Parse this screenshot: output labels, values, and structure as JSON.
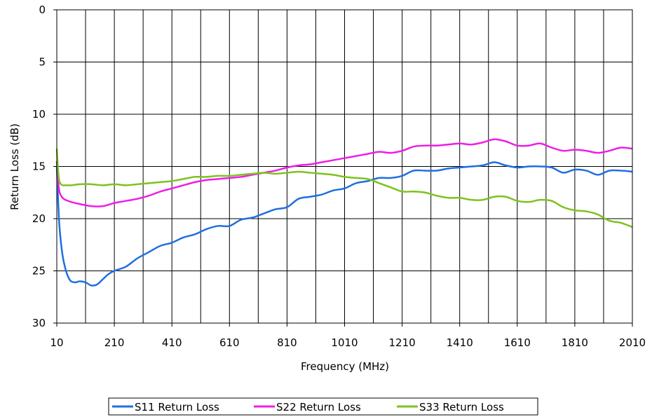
{
  "chart_data": {
    "type": "line",
    "title": "",
    "xlabel": "Frequency (MHz)",
    "ylabel": "Return Loss (dB)",
    "xlim": [
      10,
      2010
    ],
    "ylim": [
      0,
      30
    ],
    "y_inverted": true,
    "x_ticks": [
      "10",
      "210",
      "410",
      "610",
      "810",
      "1010",
      "1210",
      "1410",
      "1610",
      "1810",
      "2010"
    ],
    "y_ticks": [
      "0",
      "5",
      "10",
      "15",
      "20",
      "25",
      "30"
    ],
    "grid": {
      "vertical_step": 100,
      "horizontal_step": 5
    },
    "legend_position": "bottom",
    "series": [
      {
        "name": "S11 Return Loss",
        "color": "#1f6fe0",
        "x": [
          10,
          15,
          20,
          30,
          40,
          50,
          60,
          75,
          90,
          110,
          130,
          150,
          170,
          190,
          210,
          250,
          290,
          330,
          370,
          410,
          450,
          490,
          530,
          570,
          610,
          650,
          690,
          730,
          770,
          810,
          850,
          890,
          930,
          970,
          1010,
          1050,
          1090,
          1130,
          1170,
          1210,
          1250,
          1290,
          1330,
          1370,
          1410,
          1450,
          1490,
          1530,
          1570,
          1610,
          1650,
          1690,
          1730,
          1770,
          1810,
          1850,
          1890,
          1930,
          1970,
          2010
        ],
        "y": [
          15,
          18.5,
          21,
          23.5,
          24.8,
          25.6,
          26.0,
          26.1,
          26.0,
          26.1,
          26.4,
          26.3,
          25.8,
          25.3,
          25.0,
          24.6,
          23.8,
          23.2,
          22.6,
          22.3,
          21.8,
          21.5,
          21.0,
          20.7,
          20.7,
          20.1,
          19.9,
          19.5,
          19.1,
          18.9,
          18.1,
          17.9,
          17.7,
          17.3,
          17.1,
          16.6,
          16.4,
          16.1,
          16.1,
          15.9,
          15.4,
          15.4,
          15.4,
          15.2,
          15.1,
          15.0,
          14.9,
          14.6,
          14.9,
          15.1,
          15.0,
          15.0,
          15.1,
          15.6,
          15.3,
          15.4,
          15.8,
          15.4,
          15.4,
          15.5
        ]
      },
      {
        "name": "S22 Return Loss",
        "color": "#ee1ee6",
        "x": [
          10,
          15,
          20,
          30,
          40,
          60,
          90,
          130,
          170,
          210,
          250,
          290,
          330,
          370,
          410,
          450,
          490,
          530,
          570,
          610,
          650,
          690,
          730,
          770,
          810,
          850,
          890,
          930,
          970,
          1010,
          1050,
          1090,
          1130,
          1170,
          1210,
          1250,
          1290,
          1330,
          1370,
          1410,
          1450,
          1490,
          1530,
          1570,
          1610,
          1650,
          1690,
          1730,
          1770,
          1810,
          1850,
          1890,
          1930,
          1970,
          2010
        ],
        "y": [
          14.5,
          16.5,
          17.5,
          18.0,
          18.2,
          18.4,
          18.6,
          18.8,
          18.8,
          18.5,
          18.3,
          18.1,
          17.8,
          17.4,
          17.1,
          16.8,
          16.5,
          16.3,
          16.2,
          16.1,
          16.0,
          15.8,
          15.6,
          15.4,
          15.1,
          14.9,
          14.8,
          14.6,
          14.4,
          14.2,
          14.0,
          13.8,
          13.6,
          13.7,
          13.5,
          13.1,
          13.0,
          13.0,
          12.9,
          12.8,
          12.9,
          12.7,
          12.4,
          12.6,
          13.0,
          13.0,
          12.8,
          13.2,
          13.5,
          13.4,
          13.5,
          13.7,
          13.5,
          13.2,
          13.3
        ]
      },
      {
        "name": "S33 Return Loss",
        "color": "#7dc21e",
        "x": [
          10,
          15,
          20,
          30,
          40,
          60,
          90,
          130,
          170,
          210,
          250,
          290,
          330,
          370,
          410,
          450,
          490,
          530,
          570,
          610,
          650,
          690,
          730,
          770,
          810,
          850,
          890,
          930,
          970,
          1010,
          1050,
          1090,
          1130,
          1170,
          1210,
          1250,
          1290,
          1330,
          1370,
          1410,
          1450,
          1490,
          1530,
          1570,
          1610,
          1650,
          1690,
          1730,
          1770,
          1810,
          1850,
          1890,
          1930,
          1970,
          2010
        ],
        "y": [
          13.3,
          15.5,
          16.5,
          16.8,
          16.8,
          16.8,
          16.7,
          16.7,
          16.8,
          16.7,
          16.8,
          16.7,
          16.6,
          16.5,
          16.4,
          16.2,
          16.0,
          16.0,
          15.9,
          15.9,
          15.8,
          15.7,
          15.6,
          15.7,
          15.6,
          15.5,
          15.6,
          15.7,
          15.8,
          16.0,
          16.1,
          16.2,
          16.6,
          17.0,
          17.4,
          17.4,
          17.5,
          17.8,
          18.0,
          18.0,
          18.2,
          18.2,
          17.9,
          17.9,
          18.3,
          18.4,
          18.2,
          18.3,
          18.9,
          19.2,
          19.3,
          19.6,
          20.2,
          20.4,
          20.8
        ]
      }
    ]
  }
}
